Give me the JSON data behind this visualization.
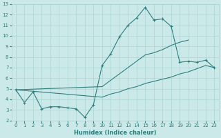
{
  "xlabel": "Humidex (Indice chaleur)",
  "x": [
    0,
    1,
    2,
    3,
    4,
    5,
    6,
    7,
    8,
    9,
    10,
    11,
    12,
    13,
    14,
    15,
    16,
    17,
    18,
    19,
    20,
    21,
    22,
    23
  ],
  "line_data": [
    4.9,
    3.7,
    4.7,
    3.1,
    3.3,
    3.3,
    3.2,
    3.1,
    2.3,
    3.5,
    7.2,
    8.3,
    9.9,
    11.0,
    11.7,
    12.7,
    11.5,
    11.6,
    10.9,
    7.5,
    7.6,
    7.5,
    7.7,
    7.0
  ],
  "line_upper": [
    4.9,
    null,
    null,
    null,
    null,
    null,
    null,
    null,
    null,
    null,
    5.2,
    5.8,
    6.4,
    7.0,
    7.6,
    8.2,
    8.4,
    8.7,
    9.1,
    9.4,
    9.6,
    null,
    null,
    null
  ],
  "line_lower": [
    4.9,
    null,
    null,
    null,
    null,
    null,
    null,
    null,
    null,
    null,
    4.2,
    4.5,
    4.7,
    5.0,
    5.2,
    5.5,
    5.7,
    5.9,
    6.1,
    6.4,
    6.6,
    6.9,
    7.2,
    7.0
  ],
  "line_color": "#2e7d7d",
  "bg_color": "#cce9e9",
  "grid_color": "#aad4d4",
  "ylim": [
    2,
    13
  ],
  "xlim": [
    -0.5,
    23.5
  ],
  "yticks": [
    2,
    3,
    4,
    5,
    6,
    7,
    8,
    9,
    10,
    11,
    12,
    13
  ],
  "xticks": [
    0,
    1,
    2,
    3,
    4,
    5,
    6,
    7,
    8,
    9,
    10,
    11,
    12,
    13,
    14,
    15,
    16,
    17,
    18,
    19,
    20,
    21,
    22,
    23
  ],
  "tick_fontsize": 5.0,
  "xlabel_fontsize": 6.0
}
